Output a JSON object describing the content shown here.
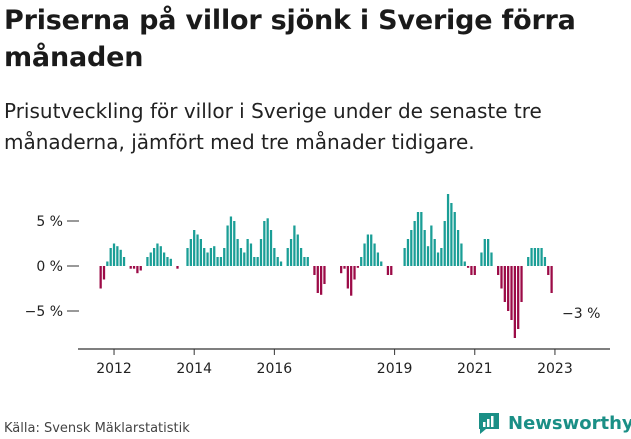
{
  "header": {
    "title": "Priserna på villor sjönk i Sverige förra månaden",
    "subtitle": "Prisutveckling för villor i Sverige under de senaste tre månaderna, jämfört med tre månader tidigare."
  },
  "footer": {
    "source": "Källa: Svensk Mäklarstatistik",
    "brand": "Newsworthy"
  },
  "colors": {
    "positive": "#1a9e96",
    "negative": "#9c0b47",
    "axis": "#333333",
    "brand": "#1a8f86"
  },
  "chart_data": {
    "type": "bar",
    "title": "Priserna på villor sjönk i Sverige förra månaden",
    "subtitle": "Prisutveckling för villor i Sverige under de senaste tre månaderna, jämfört med tre månader tidigare.",
    "xlabel": "",
    "ylabel": "",
    "ylim": [
      -9,
      7
    ],
    "y_ticks": [
      5,
      0,
      -5
    ],
    "y_tick_labels": [
      "5 %",
      "0 %",
      "−5 %"
    ],
    "x_ticks": [
      "2012",
      "2014",
      "2016",
      "2019",
      "2021",
      "2023"
    ],
    "x_tick_positions": [
      2012,
      2014,
      2016,
      2019,
      2021,
      2023
    ],
    "grid": false,
    "legend": "none",
    "annotation": {
      "text": "−3 %",
      "target": "last"
    },
    "x_start": 2011.6667,
    "x_step": 0.0833333,
    "values": [
      -2.5,
      -1.5,
      0.5,
      2,
      2.5,
      2.2,
      1.8,
      1,
      0,
      -0.3,
      -0.3,
      -0.8,
      -0.5,
      0,
      1,
      1.5,
      2,
      2.5,
      2.2,
      1.5,
      1,
      0.8,
      0,
      -0.3,
      0,
      0,
      2,
      3,
      4,
      3.5,
      3,
      2,
      1.5,
      2,
      2.2,
      1,
      1,
      2,
      4.5,
      5.5,
      5,
      3,
      2,
      1.5,
      3,
      2.5,
      1,
      1,
      3,
      5,
      5.3,
      4,
      2,
      1,
      0.5,
      0,
      2,
      3,
      4.5,
      3.5,
      2,
      1,
      1,
      0,
      -1,
      -3,
      -3.2,
      -2,
      0,
      0,
      0,
      0,
      -0.8,
      -0.3,
      -2.5,
      -3.3,
      -1.5,
      -0.2,
      1,
      2.5,
      3.5,
      3.5,
      2.5,
      1.5,
      0.5,
      0,
      -1,
      -1,
      0,
      0,
      0,
      2,
      3,
      4,
      5,
      6,
      6,
      4,
      2.2,
      4.5,
      3,
      1.5,
      2,
      5,
      8,
      7,
      6,
      4,
      2.5,
      0.5,
      -0.2,
      -1,
      -1,
      0,
      1.5,
      3,
      3,
      1.5,
      0,
      -1,
      -2.5,
      -4,
      -5,
      -6,
      -8,
      -7,
      -4,
      0,
      1,
      2,
      2,
      2,
      2,
      1,
      -1,
      -3
    ]
  }
}
